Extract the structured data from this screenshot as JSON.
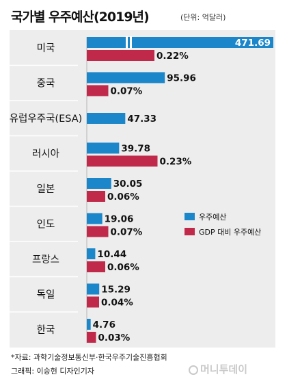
{
  "header": {
    "title": "국가별 우주예산(2019년)",
    "unit": "(단위: 억달러)"
  },
  "chart_data": {
    "type": "bar",
    "title": "국가별 우주예산(2019년)",
    "unit": "(단위: 억달러)",
    "categories": [
      "미국",
      "중국",
      "유럽우주국(ESA)",
      "러시아",
      "일본",
      "인도",
      "프랑스",
      "독일",
      "한국"
    ],
    "series": [
      {
        "name": "우주예산",
        "color": "#1b86c9",
        "values": [
          471.69,
          95.96,
          47.33,
          39.78,
          30.05,
          19.06,
          10.44,
          15.29,
          4.76
        ],
        "labels": [
          "471.69",
          "95.96",
          "47.33",
          "39.78",
          "30.05",
          "19.06",
          "10.44",
          "15.29",
          "4.76"
        ]
      },
      {
        "name": "GDP 대비 우주예산",
        "color": "#c1294a",
        "values": [
          0.22,
          0.07,
          null,
          0.23,
          0.06,
          0.07,
          0.06,
          0.04,
          0.03
        ],
        "labels": [
          "0.22%",
          "0.07%",
          "",
          "0.23%",
          "0.06%",
          "0.07%",
          "0.06%",
          "0.04%",
          "0.03%"
        ]
      }
    ],
    "axis_break": {
      "category": "미국",
      "series": "우주예산"
    },
    "legend_position": "right"
  },
  "footer": {
    "source": "*자료: 과학기술정보통신부·한국우주기술진흥협회",
    "credit": "그래픽: 이승현 디자인기자",
    "brand": "머니투데이"
  }
}
